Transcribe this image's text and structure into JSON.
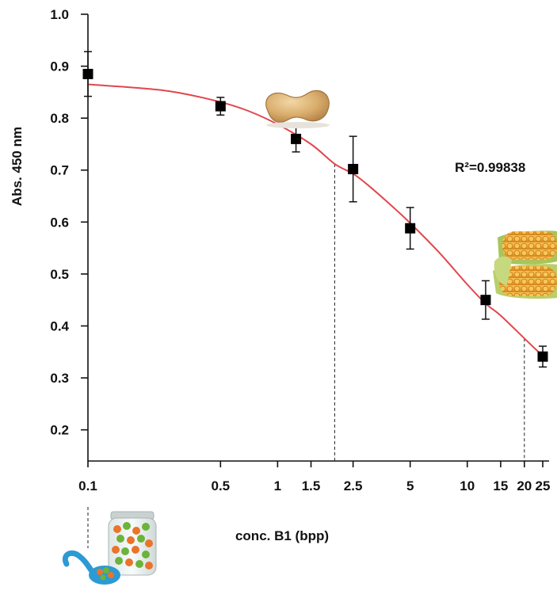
{
  "chart_data": {
    "type": "scatter",
    "title": "",
    "xlabel": "conc. B1 (bpp)",
    "ylabel": "Abs. 450 nm",
    "xscale": "log",
    "xlim": [
      0.1,
      27
    ],
    "ylim": [
      0.14,
      1.0
    ],
    "xticks": [
      "0.1",
      "0.5",
      "1",
      "1.5",
      "2.5",
      "5",
      "10",
      "15",
      "20",
      "25"
    ],
    "xtick_values": [
      0.1,
      0.5,
      1,
      1.5,
      2.5,
      5,
      10,
      15,
      20,
      25
    ],
    "yticks": [
      "0.2",
      "0.3",
      "0.4",
      "0.5",
      "0.6",
      "0.7",
      "0.8",
      "0.9",
      "1.0"
    ],
    "ytick_values": [
      0.2,
      0.3,
      0.4,
      0.5,
      0.6,
      0.7,
      0.8,
      0.9,
      1.0
    ],
    "series": [
      {
        "x": [
          0.1,
          0.5,
          1.25,
          2.5,
          5,
          12.5,
          25
        ],
        "y": [
          0.885,
          0.823,
          0.76,
          0.702,
          0.588,
          0.45,
          0.341
        ],
        "yerr": [
          0.043,
          0.017,
          0.025,
          0.063,
          0.04,
          0.037,
          0.02
        ]
      }
    ],
    "fit_curve": {
      "x": [
        0.1,
        0.2,
        0.3,
        0.5,
        0.7,
        1,
        1.5,
        2,
        2.5,
        3,
        4,
        5,
        7,
        10,
        12.5,
        15,
        20,
        25
      ],
      "y": [
        0.865,
        0.857,
        0.849,
        0.831,
        0.814,
        0.788,
        0.75,
        0.712,
        0.693,
        0.671,
        0.631,
        0.598,
        0.544,
        0.48,
        0.443,
        0.42,
        0.376,
        0.342
      ],
      "color": "#e0474c"
    },
    "reference_lines": [
      {
        "x": 2,
        "y": 0.712
      },
      {
        "x": 20,
        "y": 0.376
      }
    ],
    "annotation": "R²=0.99838",
    "grid": false,
    "marker_color": "#000000",
    "images": [
      "peanut",
      "corn-cobs",
      "jar-of-peas-and-carrots",
      "spoon"
    ]
  }
}
